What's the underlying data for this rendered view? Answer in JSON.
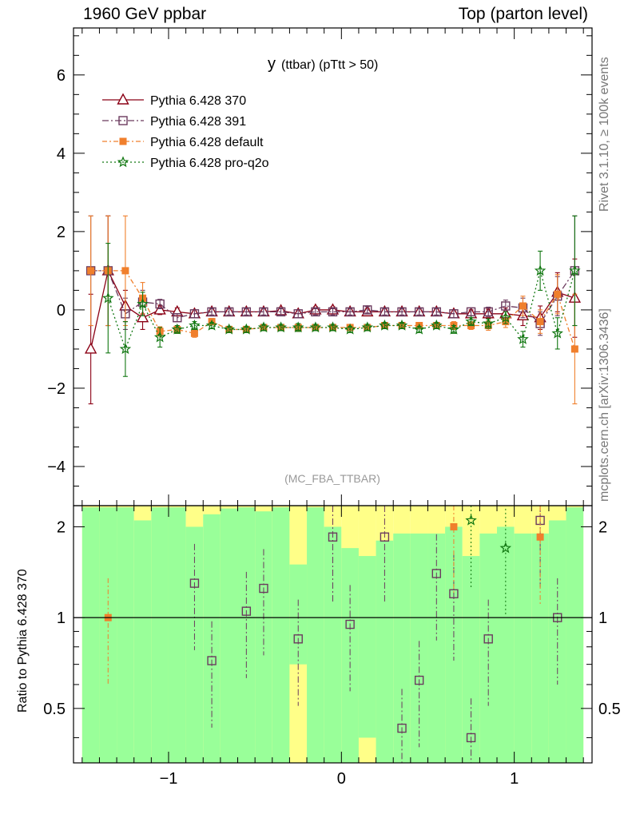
{
  "header": {
    "left": "1960 GeV ppbar",
    "right": "Top (parton level)"
  },
  "side_text": {
    "rivet": "Rivet 3.1.10, ≥ 100k events",
    "mcplots": "mcplots.cern.ch [arXiv:1306.3436]"
  },
  "plot_title": {
    "main": "y",
    "sub": "(ttbar) (pTtt > 50)"
  },
  "analysis_label": "(MC_FBA_TTBAR)",
  "ratio_ylabel": "Ratio to Pythia 6.428 370",
  "colors": {
    "p370": "#8b0015",
    "p391": "#6b3a5e",
    "default": "#f07f2c",
    "proq2o": "#117711",
    "band_green": "#99ff99",
    "band_yellow": "#ffff88"
  },
  "chart_data": [
    {
      "type": "line",
      "panel": "main",
      "x_ticks": [
        -1,
        0,
        1
      ],
      "y_ticks": [
        -4,
        -2,
        0,
        2,
        4,
        6
      ],
      "xlim": [
        -1.55,
        1.45
      ],
      "ylim": [
        -5.0,
        7.2
      ],
      "grid": false,
      "legend_position": "top-left",
      "x": [
        -1.45,
        -1.35,
        -1.25,
        -1.15,
        -1.05,
        -0.95,
        -0.85,
        -0.75,
        -0.65,
        -0.55,
        -0.45,
        -0.35,
        -0.25,
        -0.15,
        -0.05,
        0.05,
        0.15,
        0.25,
        0.35,
        0.45,
        0.55,
        0.65,
        0.75,
        0.85,
        0.95,
        1.05,
        1.15,
        1.25,
        1.35
      ],
      "series": [
        {
          "name": "Pythia 6.428 370",
          "key": "p370",
          "marker": "triangle",
          "dash": "",
          "values": [
            -1.0,
            1.0,
            0.1,
            -0.2,
            0.0,
            -0.05,
            -0.1,
            -0.05,
            -0.05,
            -0.05,
            -0.05,
            -0.02,
            -0.1,
            0.0,
            0.0,
            -0.05,
            -0.05,
            -0.05,
            -0.05,
            -0.05,
            -0.05,
            -0.1,
            -0.1,
            -0.1,
            -0.1,
            -0.15,
            -0.2,
            0.45,
            0.3
          ],
          "errors": [
            1.4,
            1.4,
            0.4,
            0.3,
            0.12,
            0.1,
            0.1,
            0.08,
            0.08,
            0.08,
            0.08,
            0.08,
            0.1,
            0.08,
            0.08,
            0.08,
            0.08,
            0.08,
            0.08,
            0.08,
            0.08,
            0.1,
            0.1,
            0.12,
            0.15,
            0.25,
            0.3,
            0.5,
            1.0
          ]
        },
        {
          "name": "Pythia 6.428 391",
          "key": "p391",
          "marker": "square",
          "dash": "8,3,2,3",
          "values": [
            1.0,
            1.0,
            -0.1,
            0.2,
            0.15,
            -0.2,
            -0.1,
            -0.05,
            -0.05,
            -0.05,
            -0.05,
            -0.05,
            -0.1,
            -0.05,
            -0.05,
            -0.05,
            0.0,
            -0.05,
            -0.05,
            -0.05,
            -0.05,
            -0.1,
            -0.05,
            -0.05,
            0.1,
            0.05,
            -0.35,
            0.35,
            1.0
          ],
          "errors": [
            1.4,
            1.4,
            0.4,
            0.3,
            0.12,
            0.1,
            0.1,
            0.08,
            0.08,
            0.08,
            0.08,
            0.08,
            0.1,
            0.08,
            0.08,
            0.08,
            0.08,
            0.08,
            0.08,
            0.08,
            0.08,
            0.1,
            0.1,
            0.12,
            0.15,
            0.25,
            0.3,
            0.5,
            1.4
          ]
        },
        {
          "name": "Pythia 6.428 default",
          "key": "default",
          "marker": "filled-square",
          "dash": "6,3,2,3",
          "values": [
            1.0,
            1.0,
            1.0,
            0.3,
            -0.55,
            -0.5,
            -0.6,
            -0.3,
            -0.5,
            -0.5,
            -0.45,
            -0.45,
            -0.45,
            -0.45,
            -0.45,
            -0.45,
            -0.45,
            -0.4,
            -0.4,
            -0.4,
            -0.4,
            -0.4,
            -0.4,
            -0.4,
            -0.3,
            0.1,
            -0.3,
            0.4,
            -1.0
          ],
          "errors": [
            1.4,
            1.4,
            1.4,
            0.4,
            0.12,
            0.1,
            0.1,
            0.08,
            0.08,
            0.08,
            0.08,
            0.08,
            0.1,
            0.08,
            0.08,
            0.08,
            0.08,
            0.08,
            0.08,
            0.08,
            0.08,
            0.1,
            0.1,
            0.12,
            0.15,
            0.25,
            0.3,
            0.5,
            1.4
          ]
        },
        {
          "name": "Pythia 6.428 pro-q2o",
          "key": "proq2o",
          "marker": "star",
          "dash": "2,3",
          "values": [
            null,
            0.3,
            -1.0,
            0.15,
            -0.7,
            -0.5,
            -0.4,
            -0.4,
            -0.5,
            -0.5,
            -0.45,
            -0.45,
            -0.45,
            -0.45,
            -0.45,
            -0.5,
            -0.45,
            -0.4,
            -0.4,
            -0.5,
            -0.4,
            -0.5,
            -0.3,
            -0.35,
            -0.2,
            -0.75,
            1.0,
            -0.6,
            1.0
          ],
          "errors": [
            0,
            1.4,
            0.7,
            0.3,
            0.25,
            0.1,
            0.1,
            0.08,
            0.08,
            0.08,
            0.08,
            0.08,
            0.1,
            0.08,
            0.08,
            0.08,
            0.08,
            0.08,
            0.08,
            0.08,
            0.08,
            0.1,
            0.1,
            0.12,
            0.15,
            0.2,
            0.5,
            0.4,
            1.4
          ]
        }
      ]
    },
    {
      "type": "line",
      "panel": "ratio",
      "ylabel": "Ratio to Pythia 6.428 370",
      "y_ticks": [
        0.5,
        1,
        2
      ],
      "ylim": [
        0.33,
        2.35
      ],
      "bands": {
        "green_upper": [
          2.32,
          2.32,
          2.32,
          2.1,
          2.32,
          2.32,
          2.0,
          2.2,
          2.3,
          2.32,
          2.25,
          2.32,
          1.5,
          2.32,
          2.0,
          1.7,
          1.6,
          1.8,
          1.9,
          1.9,
          1.9,
          2.0,
          1.6,
          1.9,
          2.0,
          1.9,
          1.9,
          2.1,
          2.32
        ],
        "green_lower": [
          0.33,
          0.33,
          0.33,
          0.33,
          0.33,
          0.33,
          0.33,
          0.33,
          0.33,
          0.33,
          0.33,
          0.33,
          0.7,
          0.33,
          0.33,
          0.33,
          0.4,
          0.33,
          0.33,
          0.33,
          0.33,
          0.33,
          0.33,
          0.33,
          0.33,
          0.33,
          0.33,
          0.33,
          0.33
        ],
        "yellow_upper": [
          2.35,
          2.35,
          2.35,
          2.35,
          2.35,
          2.35,
          2.35,
          2.35,
          2.35,
          2.35,
          2.35,
          2.35,
          2.35,
          2.35,
          2.35,
          2.35,
          2.35,
          2.35,
          2.35,
          2.35,
          2.35,
          2.35,
          2.35,
          2.35,
          2.35,
          2.35,
          2.35,
          2.35,
          2.35
        ],
        "yellow_lower": [
          0.33,
          0.33,
          0.33,
          0.33,
          0.33,
          0.33,
          0.33,
          0.33,
          0.33,
          0.33,
          0.33,
          0.33,
          0.33,
          0.33,
          0.33,
          0.33,
          0.33,
          0.33,
          0.33,
          0.33,
          0.33,
          0.33,
          0.33,
          0.33,
          0.33,
          0.33,
          0.33,
          0.33,
          0.33
        ]
      },
      "series": [
        {
          "key": "p391",
          "values": [
            null,
            null,
            null,
            null,
            null,
            null,
            1.3,
            0.72,
            null,
            1.05,
            1.25,
            null,
            0.85,
            null,
            1.85,
            0.95,
            null,
            1.85,
            0.43,
            0.62,
            1.4,
            1.2,
            0.4,
            0.85,
            null,
            null,
            2.1,
            1.0,
            null
          ]
        },
        {
          "key": "default",
          "values": [
            null,
            1.0,
            null,
            null,
            null,
            null,
            null,
            null,
            null,
            null,
            null,
            null,
            null,
            null,
            null,
            null,
            null,
            null,
            null,
            null,
            null,
            2.0,
            null,
            null,
            null,
            null,
            1.85,
            null,
            null
          ]
        },
        {
          "key": "proq2o",
          "values": [
            null,
            null,
            null,
            null,
            null,
            null,
            null,
            null,
            null,
            null,
            null,
            null,
            null,
            null,
            null,
            null,
            null,
            null,
            null,
            null,
            null,
            null,
            2.1,
            null,
            1.7,
            null,
            null,
            null,
            null
          ]
        }
      ]
    }
  ]
}
